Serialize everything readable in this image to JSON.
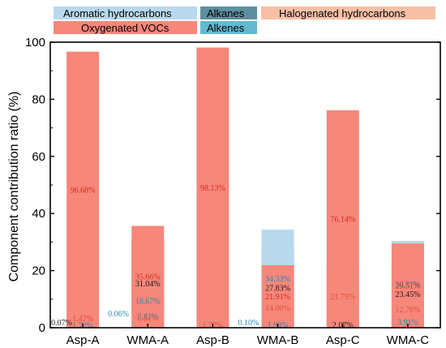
{
  "chart_data": {
    "type": "bar",
    "stacked": true,
    "title": "",
    "xlabel": "",
    "ylabel": "Component contribution ratio (%)",
    "ylim": [
      0,
      100
    ],
    "yticks": [
      0,
      20,
      40,
      60,
      80,
      100
    ],
    "grid": false,
    "legend_position": "top",
    "categories": [
      "Asp-A",
      "WMA-A",
      "Asp-B",
      "WMA-B",
      "Asp-C",
      "WMA-C"
    ],
    "series": [
      {
        "name": "Alkanes",
        "color": "#5d8fa0",
        "label_color": "#1a1a1a",
        "values": [
          0.07,
          31.04,
          0,
          27.83,
          2.07,
          23.45
        ],
        "labels": [
          "0.07%",
          "31.04%",
          "",
          "27.83%",
          "2.07%",
          "23.45%"
        ]
      },
      {
        "name": "Alkenes",
        "color": "#63b8cf",
        "label_color": "#2a86b8",
        "values": [
          1.72,
          7.82,
          0.1,
          1.93,
          0,
          3.91
        ],
        "labels": [
          "1.72%",
          "7.82%",
          "0.10%",
          "1.93%",
          "",
          "3.91%"
        ]
      },
      {
        "name": "Aromatic hydrocarbons",
        "color": "#b8d8ec",
        "label_color": "#2a86b8",
        "values": [
          0.06,
          18.67,
          0,
          34.33,
          0,
          30.37
        ],
        "labels": [
          "0.06%",
          "18.67%",
          "",
          "34.33%",
          "",
          "30.37%"
        ]
      },
      {
        "name": "Halogenated hydrocarbons",
        "color": "#f9bfa6",
        "label_color": "#e2523c",
        "values": [
          1.47,
          6.81,
          1.77,
          14.0,
          21.79,
          12.76
        ],
        "labels": [
          "1.47%",
          "6.81%",
          "1.77%",
          "14.00%",
          "21.79%",
          "12.76%"
        ]
      },
      {
        "name": "Oxygenated VOCs",
        "color": "#f6877a",
        "label_color": "#d62d20",
        "values": [
          96.68,
          35.66,
          98.13,
          21.91,
          76.14,
          29.51
        ],
        "labels": [
          "96.68%",
          "35.66%",
          "98.13%",
          "21.91%",
          "76.14%",
          "29.51%"
        ]
      }
    ]
  }
}
